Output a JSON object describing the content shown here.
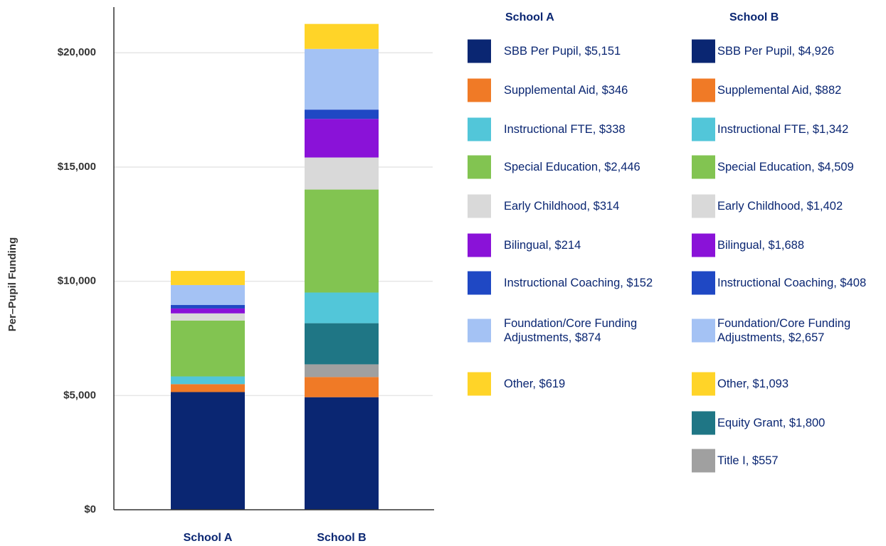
{
  "chart_data": {
    "type": "stacked_bar",
    "y_label": "Per–Pupil Funding",
    "categories": [
      "School A",
      "School B"
    ],
    "ylim": [
      0,
      22000
    ],
    "yticks": [
      {
        "value": 0,
        "label": "$0"
      },
      {
        "value": 5000,
        "label": "$5,000"
      },
      {
        "value": 10000,
        "label": "$10,000"
      },
      {
        "value": 15000,
        "label": "$15,000"
      },
      {
        "value": 20000,
        "label": "$20,000"
      }
    ],
    "grid": true,
    "series": [
      {
        "color": "#0a2672",
        "values": [
          5151,
          4926
        ],
        "value_labels": [
          "SBB Per Pupil, $5,151",
          "SBB Per Pupil, $4,926"
        ]
      },
      {
        "color": "#f07a26",
        "values": [
          346,
          882
        ],
        "value_labels": [
          "Supplemental Aid, $346",
          "Supplemental Aid, $882"
        ]
      },
      {
        "color": "#52c6d9",
        "values": [
          338,
          1342
        ],
        "value_labels": [
          "Instructional FTE, $338",
          "Instructional FTE, $1,342"
        ]
      },
      {
        "color": "#82c451",
        "values": [
          2446,
          4509
        ],
        "value_labels": [
          "Special Education, $2,446",
          "Special Education, $4,509"
        ]
      },
      {
        "color": "#d9d9d9",
        "values": [
          314,
          1402
        ],
        "value_labels": [
          "Early Childhood, $314",
          "Early Childhood, $1,402"
        ]
      },
      {
        "color": "#8a12d8",
        "values": [
          214,
          1688
        ],
        "value_labels": [
          "Bilingual, $214",
          "Bilingual, $1,688"
        ]
      },
      {
        "color": "#1f48c4",
        "values": [
          152,
          408
        ],
        "value_labels": [
          "Instructional Coaching, $152",
          "Instructional Coaching, $408"
        ]
      },
      {
        "color": "#a4c2f4",
        "values": [
          874,
          2657
        ],
        "value_labels": [
          "Foundation/Core Funding Adjustments, $874",
          "Foundation/Core Funding Adjustments, $2,657"
        ]
      },
      {
        "color": "#ffd428",
        "values": [
          619,
          1093
        ],
        "value_labels": [
          "Other, $619",
          "Other, $1,093"
        ]
      },
      {
        "color": "#1f7685",
        "values": [
          null,
          1800
        ],
        "value_labels": [
          null,
          "Equity Grant, $1,800"
        ]
      },
      {
        "color": "#a0a0a0",
        "values": [
          null,
          557
        ],
        "value_labels": [
          null,
          "Title I, $557"
        ]
      }
    ]
  }
}
